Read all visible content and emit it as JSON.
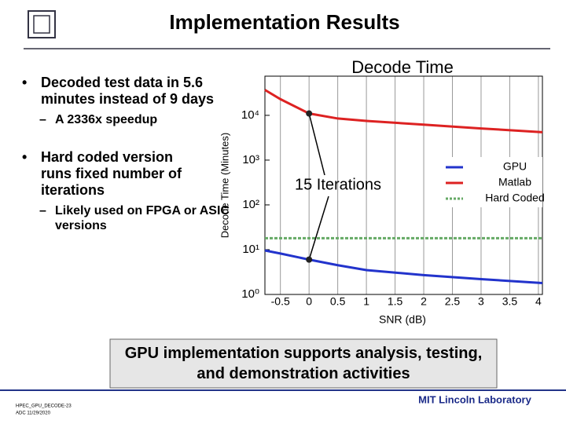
{
  "slide": {
    "title": "Implementation Results",
    "bullets": [
      {
        "text": "Decoded test data in 5.6 minutes instead of 9 days",
        "sub": [
          "A 2336x speedup"
        ]
      },
      {
        "text": "Hard coded version runs fixed number of iterations",
        "sub": [
          "Likely used on FPGA or ASIC versions"
        ]
      }
    ],
    "callout": "GPU implementation supports analysis, testing, and demonstration activities",
    "footer_left": [
      "HPEC_GPU_DECODE-23",
      "ADC 11/29/2020"
    ],
    "footer_right": "MIT Lincoln Laboratory"
  },
  "chart_data": {
    "type": "line",
    "title": "Decode Time",
    "ylabel": "Decode Time (Minutes)",
    "xlabel": "SNR (dB)",
    "log_y": true,
    "grid": true,
    "legend": "right",
    "x": [
      -0.77,
      -0.5,
      0,
      0.5,
      1,
      2,
      3,
      4.07
    ],
    "series": [
      {
        "name": "GPU",
        "color": "#2233cc",
        "dash": false,
        "values": [
          9.6,
          8.2,
          6,
          4.5,
          3.5,
          2.7,
          2.2,
          1.8
        ]
      },
      {
        "name": "Matlab",
        "color": "#dd2222",
        "dash": false,
        "values": [
          37000,
          23000,
          11000,
          8500,
          7500,
          6200,
          5100,
          4200
        ]
      },
      {
        "name": "Hard Coded",
        "color": "#66aa66",
        "dash": true,
        "values": [
          18,
          18,
          18,
          18,
          18,
          18,
          18,
          18
        ]
      }
    ],
    "annotation": {
      "text": "15 Iterations",
      "x": 0
    },
    "xlim": [
      -0.77,
      4.07
    ],
    "ylim": [
      1,
      75000
    ],
    "xticks": [
      -0.5,
      0,
      0.5,
      1,
      1.5,
      2,
      2.5,
      3,
      3.5,
      4
    ],
    "yticks": [
      {
        "value": 1,
        "label": "10⁰"
      },
      {
        "value": 10,
        "label": "10¹"
      },
      {
        "value": 100,
        "label": "10²"
      },
      {
        "value": 1000,
        "label": "10³"
      },
      {
        "value": 10000,
        "label": "10⁴"
      }
    ]
  }
}
